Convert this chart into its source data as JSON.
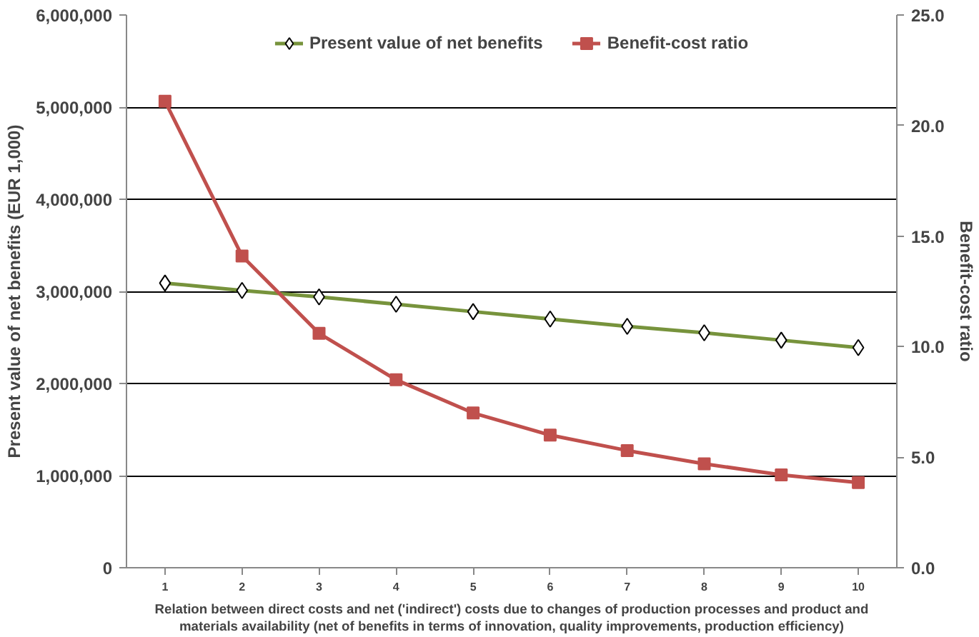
{
  "chart_data": {
    "type": "line",
    "xlabel": "Relation between direct costs and net ('indirect') costs due to changes of production processes and product and materials availability (net of benefits in terms of innovation, quality improvements, production efficiency)",
    "ylabel": "Present value of net benefits (EUR 1,000)",
    "y2label": "Benefit-cost ratio",
    "categories": [
      "1",
      "2",
      "3",
      "4",
      "5",
      "6",
      "7",
      "8",
      "9",
      "10"
    ],
    "series": [
      {
        "name": "Present value of net benefits",
        "color": "#77933c",
        "marker": "diamond",
        "values": [
          3090000,
          3010000,
          2940000,
          2860000,
          2780000,
          2700000,
          2620000,
          2550000,
          2470000,
          2390000
        ]
      },
      {
        "name": "Benefit-cost ratio",
        "color": "#c0504d",
        "marker": "square",
        "axis": "y2",
        "values": [
          21.1,
          14.1,
          10.6,
          8.5,
          7.0,
          6.0,
          5.3,
          4.7,
          4.2,
          3.85
        ]
      }
    ],
    "ylim": [
      0,
      6000000
    ],
    "yticks": [
      {
        "value": 0,
        "label": "0"
      },
      {
        "value": 1000000,
        "label": "1,000,000"
      },
      {
        "value": 2000000,
        "label": "2,000,000"
      },
      {
        "value": 3000000,
        "label": "3,000,000"
      },
      {
        "value": 4000000,
        "label": "4,000,000"
      },
      {
        "value": 5000000,
        "label": "5,000,000"
      },
      {
        "value": 6000000,
        "label": "6,000,000"
      }
    ],
    "y2lim": [
      0,
      25
    ],
    "y2ticks": [
      {
        "value": 0,
        "label": "0.0"
      },
      {
        "value": 5,
        "label": "5.0"
      },
      {
        "value": 10,
        "label": "10.0"
      },
      {
        "value": 15,
        "label": "15.0"
      },
      {
        "value": 20,
        "label": "20.0"
      },
      {
        "value": 25,
        "label": "25.0"
      }
    ],
    "grid": "y",
    "legend": "top",
    "line_style": "solid"
  }
}
